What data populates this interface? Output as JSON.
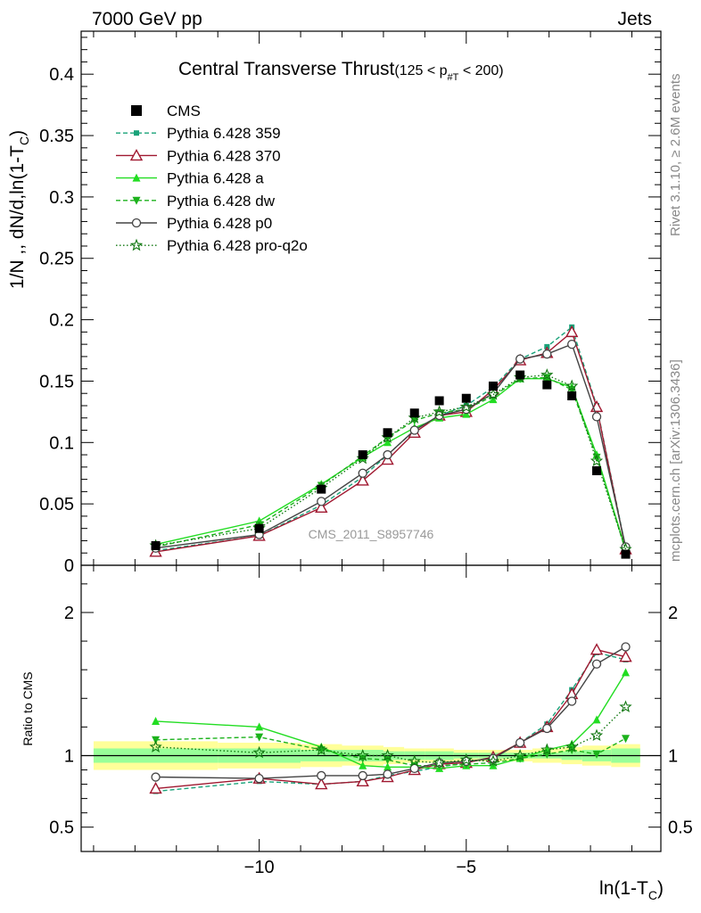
{
  "header": {
    "energy_label": "7000 GeV pp",
    "process_label": "Jets"
  },
  "side": {
    "rivet_label": "Rivet 3.1.10, ≥ 2.6M events",
    "mcplots_label": "mcplots.cern.ch [arXiv:1306.3436]"
  },
  "chart_data": {
    "type": "line",
    "title": "Central Transverse Thrust",
    "title_cut": "(125 < p",
    "title_cut_sub": "#T",
    "title_cut_end": " < 200)",
    "analysis_label": "CMS_2011_S8957746",
    "xlabel": "ln(1-T",
    "xlabel_sub": "C",
    "xlabel_end": ")",
    "ylabel": "1/N ,, dN/d,ln(1-T",
    "ylabel_sub": "C",
    "ylabel_end": ")",
    "ratio_ylabel": "Ratio to CMS",
    "xlim": [
      -14.3,
      -0.3
    ],
    "ylim": [
      0,
      0.435
    ],
    "ratio_ylim": [
      0.33,
      2.33
    ],
    "x_ticks": [
      -10,
      -5
    ],
    "x_tick_labels": [
      "−10",
      "−5"
    ],
    "y_ticks": [
      0,
      0.05,
      0.1,
      0.15,
      0.2,
      0.25,
      0.3,
      0.35,
      0.4
    ],
    "y_tick_labels": [
      "0",
      "0.05",
      "0.1",
      "0.15",
      "0.2",
      "0.25",
      "0.3",
      "0.35",
      "0.4"
    ],
    "ratio_ticks": [
      0.5,
      1,
      2
    ],
    "ratio_tick_labels": [
      "0.5",
      "1",
      "2"
    ],
    "legend_position": "top-left",
    "x": [
      -12.5,
      -10.0,
      -8.5,
      -7.5,
      -6.9,
      -6.25,
      -5.65,
      -5.0,
      -4.35,
      -3.7,
      -3.05,
      -2.45,
      -1.85,
      -1.15
    ],
    "bin_edges": [
      -14.0,
      -11.0,
      -9.0,
      -8.0,
      -7.0,
      -6.5,
      -6.0,
      -5.3,
      -4.7,
      -4.0,
      -3.4,
      -2.7,
      -2.2,
      -1.5,
      -0.8
    ],
    "data": {
      "name": "CMS",
      "values": [
        0.016,
        0.03,
        0.062,
        0.09,
        0.108,
        0.124,
        0.134,
        0.136,
        0.146,
        0.155,
        0.147,
        0.138,
        0.077,
        0.009
      ],
      "stat_band_half": [
        0.05,
        0.05,
        0.04,
        0.04,
        0.03,
        0.03,
        0.03,
        0.02,
        0.02,
        0.02,
        0.02,
        0.03,
        0.04,
        0.05
      ],
      "total_band_half": [
        0.1,
        0.09,
        0.08,
        0.07,
        0.06,
        0.05,
        0.05,
        0.04,
        0.04,
        0.04,
        0.05,
        0.06,
        0.07,
        0.08
      ]
    },
    "series": [
      {
        "name": "Pythia 6.428 359",
        "color": "#1aa37a",
        "dash": "5,3",
        "marker": "square-small",
        "values": [
          0.012,
          0.024,
          0.049,
          0.072,
          0.09,
          0.11,
          0.122,
          0.13,
          0.145,
          0.168,
          0.178,
          0.194,
          0.13,
          0.014
        ],
        "ratio": [
          0.75,
          0.82,
          0.8,
          0.82,
          0.86,
          0.89,
          0.92,
          0.95,
          0.99,
          1.09,
          1.22,
          1.46,
          1.72,
          1.67
        ]
      },
      {
        "name": "Pythia 6.428 370",
        "color": "#a01830",
        "dash": "",
        "marker": "triangle-open",
        "values": [
          0.011,
          0.024,
          0.047,
          0.069,
          0.086,
          0.108,
          0.122,
          0.125,
          0.143,
          0.167,
          0.173,
          0.19,
          0.129,
          0.013
        ],
        "ratio": [
          0.77,
          0.84,
          0.8,
          0.82,
          0.85,
          0.9,
          0.94,
          0.95,
          0.99,
          1.09,
          1.2,
          1.43,
          1.74,
          1.69
        ]
      },
      {
        "name": "Pythia 6.428 a",
        "color": "#22dd22",
        "dash": "",
        "marker": "triangle-filled",
        "values": [
          0.017,
          0.036,
          0.066,
          0.088,
          0.1,
          0.112,
          0.12,
          0.123,
          0.135,
          0.152,
          0.152,
          0.145,
          0.09,
          0.013
        ],
        "ratio": [
          1.24,
          1.2,
          1.06,
          0.93,
          0.92,
          0.92,
          0.91,
          0.93,
          0.93,
          0.98,
          1.04,
          1.08,
          1.25,
          1.58
        ]
      },
      {
        "name": "Pythia 6.428 dw",
        "color": "#1cb21c",
        "dash": "5,3",
        "marker": "triangle-down-filled",
        "values": [
          0.015,
          0.033,
          0.065,
          0.089,
          0.104,
          0.118,
          0.124,
          0.127,
          0.138,
          0.152,
          0.153,
          0.143,
          0.088,
          0.012
        ],
        "ratio": [
          1.11,
          1.13,
          1.04,
          0.98,
          0.97,
          0.93,
          0.93,
          0.94,
          0.95,
          0.98,
          1.01,
          1.04,
          1.01,
          1.12
        ]
      },
      {
        "name": "Pythia 6.428 p0",
        "color": "#444444",
        "dash": "",
        "marker": "circle-open",
        "values": [
          0.014,
          0.025,
          0.052,
          0.075,
          0.09,
          0.11,
          0.122,
          0.127,
          0.14,
          0.168,
          0.172,
          0.18,
          0.121,
          0.015
        ],
        "ratio": [
          0.85,
          0.84,
          0.86,
          0.86,
          0.87,
          0.91,
          0.95,
          0.96,
          0.98,
          1.09,
          1.19,
          1.38,
          1.64,
          1.76
        ]
      },
      {
        "name": "Pythia 6.428 pro-q2o",
        "color": "#117711",
        "dash": "1.5,2.5",
        "marker": "star-open",
        "values": [
          0.016,
          0.03,
          0.063,
          0.087,
          0.104,
          0.12,
          0.125,
          0.129,
          0.139,
          0.153,
          0.155,
          0.146,
          0.085,
          0.013
        ],
        "ratio": [
          1.06,
          1.02,
          1.04,
          1.0,
          1.0,
          0.96,
          0.95,
          0.97,
          0.96,
          1.0,
          1.04,
          1.06,
          1.14,
          1.34
        ]
      }
    ]
  }
}
